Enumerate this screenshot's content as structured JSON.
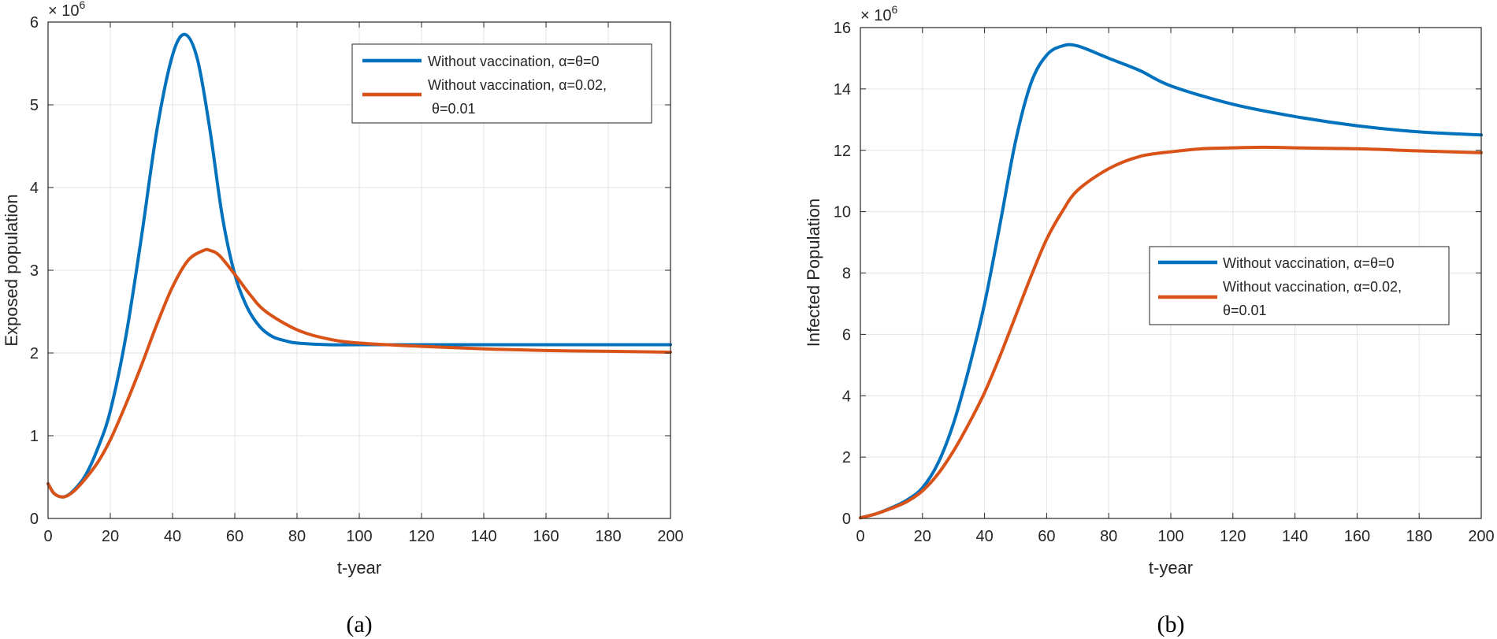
{
  "colors": {
    "series_1": "#0072BD",
    "series_2": "#D95319",
    "grid": "#e3e3e3",
    "axis": "#262626"
  },
  "chart_data": [
    {
      "type": "line",
      "panel": "(a)",
      "xlabel": "t-year",
      "ylabel": "Exposed population",
      "multiplier": "× 10",
      "multiplier_exp": "6",
      "xlim": [
        0,
        200
      ],
      "ylim": [
        0,
        6
      ],
      "xticks": [
        0,
        20,
        40,
        60,
        80,
        100,
        120,
        140,
        160,
        180,
        200
      ],
      "yticks": [
        0,
        1,
        2,
        3,
        4,
        5,
        6
      ],
      "grid": true,
      "legend_position": "top-right",
      "series": [
        {
          "name": "Without vaccination, α=θ=0",
          "legend_lines": [
            "Without vaccination, α=θ=0"
          ],
          "x": [
            0,
            2,
            5,
            8,
            12,
            16,
            20,
            25,
            30,
            35,
            40,
            44,
            48,
            52,
            56,
            60,
            64,
            68,
            72,
            76,
            80,
            90,
            100,
            120,
            140,
            160,
            180,
            200
          ],
          "y": [
            0.42,
            0.3,
            0.26,
            0.33,
            0.52,
            0.85,
            1.3,
            2.2,
            3.4,
            4.7,
            5.6,
            5.85,
            5.55,
            4.7,
            3.65,
            2.95,
            2.55,
            2.32,
            2.2,
            2.15,
            2.12,
            2.1,
            2.1,
            2.1,
            2.1,
            2.1,
            2.1,
            2.1
          ]
        },
        {
          "name": "Without vaccination, α=0.02, θ=0.01",
          "legend_lines": [
            "Without vaccination, α=0.02,",
            "θ=0.01"
          ],
          "x": [
            0,
            2,
            5,
            8,
            12,
            16,
            20,
            25,
            30,
            35,
            40,
            45,
            50,
            52,
            55,
            60,
            65,
            70,
            80,
            90,
            100,
            120,
            140,
            160,
            180,
            200
          ],
          "y": [
            0.42,
            0.3,
            0.26,
            0.32,
            0.48,
            0.68,
            0.95,
            1.38,
            1.85,
            2.35,
            2.8,
            3.12,
            3.24,
            3.24,
            3.18,
            2.95,
            2.7,
            2.5,
            2.28,
            2.17,
            2.12,
            2.08,
            2.05,
            2.03,
            2.02,
            2.01
          ]
        }
      ]
    },
    {
      "type": "line",
      "panel": "(b)",
      "xlabel": "t-year",
      "ylabel": "Infected Population",
      "multiplier": "× 10",
      "multiplier_exp": "6",
      "xlim": [
        0,
        200
      ],
      "ylim": [
        0,
        16
      ],
      "xticks": [
        0,
        20,
        40,
        60,
        80,
        100,
        120,
        140,
        160,
        180,
        200
      ],
      "yticks": [
        0,
        2,
        4,
        6,
        8,
        10,
        12,
        14,
        16
      ],
      "grid": true,
      "legend_position": "center-right",
      "series": [
        {
          "name": "Without vaccination, α=θ=0",
          "legend_lines": [
            "Without vaccination, α=θ=0"
          ],
          "x": [
            0,
            5,
            10,
            15,
            20,
            25,
            30,
            35,
            40,
            45,
            50,
            55,
            60,
            65,
            70,
            80,
            90,
            100,
            120,
            140,
            160,
            180,
            200
          ],
          "y": [
            0.02,
            0.15,
            0.35,
            0.6,
            1.0,
            1.8,
            3.1,
            4.9,
            7.0,
            9.6,
            12.3,
            14.2,
            15.1,
            15.4,
            15.4,
            15.0,
            14.6,
            14.1,
            13.5,
            13.1,
            12.8,
            12.6,
            12.5
          ]
        },
        {
          "name": "Without vaccination, α=0.02, θ=0.01",
          "legend_lines": [
            "Without vaccination, α=0.02,",
            "θ=0.01"
          ],
          "x": [
            0,
            5,
            10,
            15,
            20,
            25,
            30,
            35,
            40,
            45,
            50,
            55,
            60,
            65,
            70,
            80,
            90,
            100,
            110,
            120,
            130,
            140,
            160,
            180,
            200
          ],
          "y": [
            0.02,
            0.15,
            0.33,
            0.55,
            0.9,
            1.45,
            2.2,
            3.1,
            4.1,
            5.3,
            6.6,
            7.9,
            9.1,
            10.0,
            10.7,
            11.4,
            11.8,
            11.95,
            12.05,
            12.08,
            12.1,
            12.08,
            12.05,
            11.98,
            11.92
          ]
        }
      ]
    }
  ]
}
